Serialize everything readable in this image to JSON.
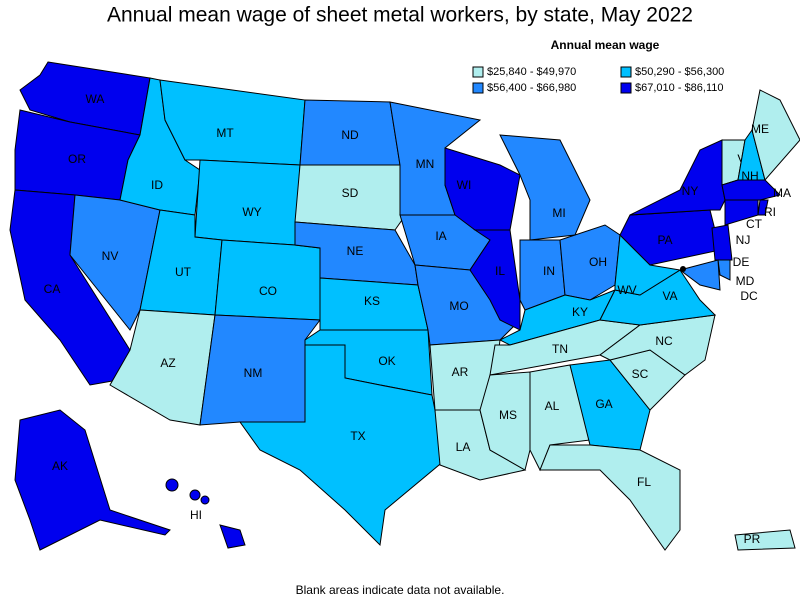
{
  "title": "Annual mean wage of sheet metal workers, by state, May 2022",
  "legend": {
    "title": "Annual mean wage",
    "entries": [
      {
        "label": "$25,840 - $49,970",
        "color": "#b0eeee"
      },
      {
        "label": "$50,290 - $56,300",
        "color": "#00c0ff"
      },
      {
        "label": "$56,400 - $66,980",
        "color": "#2288ff"
      },
      {
        "label": "$67,010 - $86,110",
        "color": "#0000ee"
      }
    ]
  },
  "states": [
    {
      "abbr": "WA",
      "class": 3
    },
    {
      "abbr": "OR",
      "class": 3
    },
    {
      "abbr": "CA",
      "class": 3
    },
    {
      "abbr": "NV",
      "class": 2
    },
    {
      "abbr": "ID",
      "class": 1
    },
    {
      "abbr": "MT",
      "class": 1
    },
    {
      "abbr": "WY",
      "class": 1
    },
    {
      "abbr": "UT",
      "class": 1
    },
    {
      "abbr": "CO",
      "class": 1
    },
    {
      "abbr": "AZ",
      "class": 0
    },
    {
      "abbr": "NM",
      "class": 2
    },
    {
      "abbr": "ND",
      "class": 2
    },
    {
      "abbr": "SD",
      "class": 0
    },
    {
      "abbr": "NE",
      "class": 2
    },
    {
      "abbr": "KS",
      "class": 1
    },
    {
      "abbr": "OK",
      "class": 1
    },
    {
      "abbr": "TX",
      "class": 1
    },
    {
      "abbr": "MN",
      "class": 2
    },
    {
      "abbr": "IA",
      "class": 2
    },
    {
      "abbr": "MO",
      "class": 2
    },
    {
      "abbr": "AR",
      "class": 0
    },
    {
      "abbr": "LA",
      "class": 0
    },
    {
      "abbr": "WI",
      "class": 3
    },
    {
      "abbr": "IL",
      "class": 3
    },
    {
      "abbr": "MI",
      "class": 2
    },
    {
      "abbr": "IN",
      "class": 2
    },
    {
      "abbr": "OH",
      "class": 2
    },
    {
      "abbr": "KY",
      "class": 1
    },
    {
      "abbr": "TN",
      "class": 0
    },
    {
      "abbr": "MS",
      "class": 0
    },
    {
      "abbr": "AL",
      "class": 0
    },
    {
      "abbr": "GA",
      "class": 1
    },
    {
      "abbr": "FL",
      "class": 0
    },
    {
      "abbr": "SC",
      "class": 0
    },
    {
      "abbr": "NC",
      "class": 0
    },
    {
      "abbr": "VA",
      "class": 1
    },
    {
      "abbr": "WV",
      "class": 1
    },
    {
      "abbr": "PA",
      "class": 3
    },
    {
      "abbr": "NY",
      "class": 3
    },
    {
      "abbr": "VT",
      "class": 0
    },
    {
      "abbr": "NH",
      "class": 1
    },
    {
      "abbr": "ME",
      "class": 0
    },
    {
      "abbr": "MA",
      "class": 3
    },
    {
      "abbr": "RI",
      "class": 3
    },
    {
      "abbr": "CT",
      "class": 3
    },
    {
      "abbr": "NJ",
      "class": 3
    },
    {
      "abbr": "DE",
      "class": 2
    },
    {
      "abbr": "MD",
      "class": 2
    },
    {
      "abbr": "DC",
      "class": 2
    },
    {
      "abbr": "AK",
      "class": 3
    },
    {
      "abbr": "HI",
      "class": 3
    },
    {
      "abbr": "PR",
      "class": 0
    }
  ],
  "footnote": "Blank areas indicate data not available."
}
